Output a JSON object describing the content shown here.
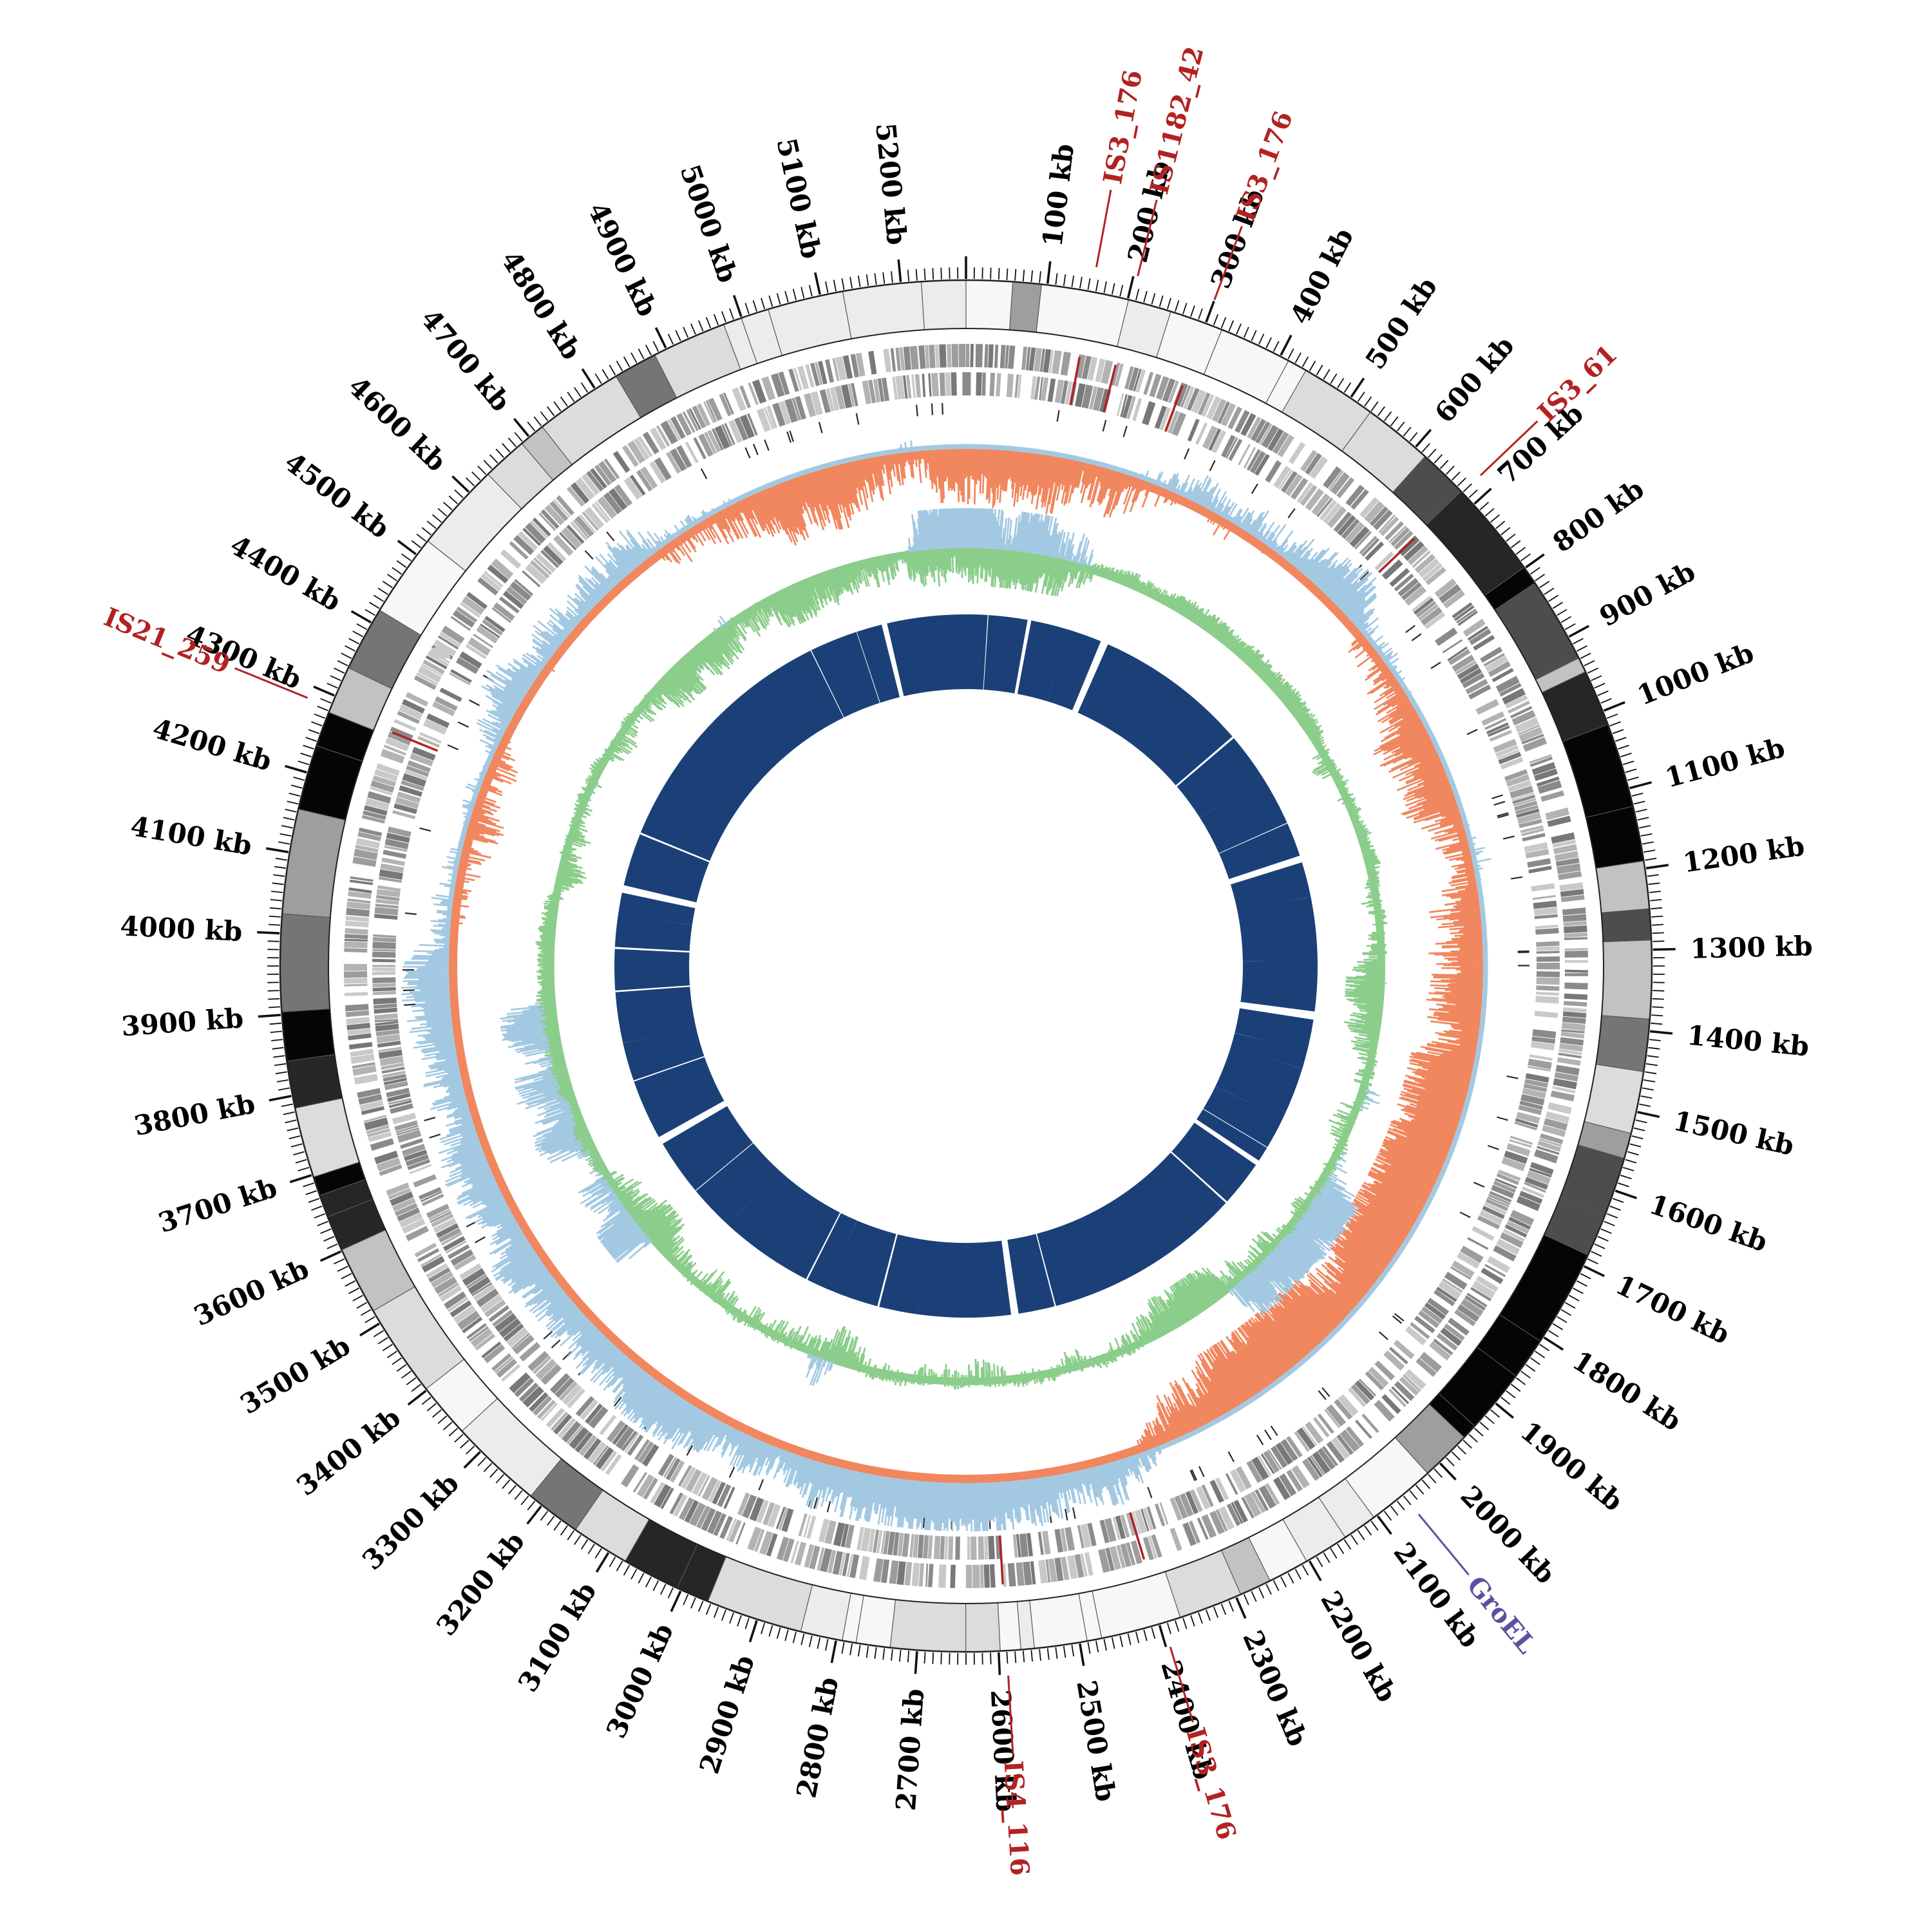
{
  "chart_data": {
    "type": "circular-genome",
    "genome_length_kb": 5280,
    "major_tick_kb": 100,
    "minor_tick_kb": 10,
    "tick_unit": "kb",
    "tick_color": "#111111",
    "tick_label_color": "#000000",
    "tick_labels": [
      "100 kb",
      "200 kb",
      "300 kb",
      "400 kb",
      "500 kb",
      "600 kb",
      "700 kb",
      "800 kb",
      "900 kb",
      "1000 kb",
      "1100 kb",
      "1200 kb",
      "1300 kb",
      "1400 kb",
      "1500 kb",
      "1600 kb",
      "1700 kb",
      "1800 kb",
      "1900 kb",
      "2000 kb",
      "2100 kb",
      "2200 kb",
      "2300 kb",
      "2400 kb",
      "2500 kb",
      "2600 kb",
      "2700 kb",
      "2800 kb",
      "2900 kb",
      "3000 kb",
      "3100 kb",
      "3200 kb",
      "3300 kb",
      "3400 kb",
      "3500 kb",
      "3600 kb",
      "3700 kb",
      "3800 kb",
      "3900 kb",
      "4000 kb",
      "4100 kb",
      "4200 kb",
      "4300 kb",
      "4400 kb",
      "4500 kb",
      "4600 kb",
      "4700 kb",
      "4800 kb",
      "4900 kb",
      "5000 kb",
      "5100 kb",
      "5200 kb"
    ],
    "annotations": [
      {
        "label": "IS3_176",
        "position_kb": 155,
        "color": "#b22222",
        "marker_inside": true
      },
      {
        "label": "IS1182_42",
        "position_kb": 205,
        "color": "#b22222",
        "marker_inside": true
      },
      {
        "label": "IS3_176",
        "position_kb": 300,
        "color": "#b22222",
        "marker_inside": true
      },
      {
        "label": "IS3_61",
        "position_kb": 680,
        "color": "#b22222",
        "marker_inside": true
      },
      {
        "label": "GroEL",
        "position_kb": 2060,
        "color": "#5a52a0",
        "marker_inside": false
      },
      {
        "label": "IS3_176",
        "position_kb": 2395,
        "color": "#b22222",
        "marker_inside": true
      },
      {
        "label": "IS4_116",
        "position_kb": 2590,
        "color": "#b22222",
        "marker_inside": true
      },
      {
        "label": "IS21_259",
        "position_kb": 4285,
        "color": "#b22222",
        "marker_inside": true
      }
    ],
    "tracks": [
      {
        "name": "contig-shading",
        "type": "blocks",
        "palette": [
          "#f7f7f7",
          "#ececec",
          "#dcdcdc",
          "#c2c2c2",
          "#9e9e9e",
          "#757575",
          "#4d4d4d",
          "#262626",
          "#050505"
        ]
      },
      {
        "name": "gene-tiles",
        "type": "tiles",
        "rows": 2,
        "palette": [
          "#c9c9c9",
          "#b3b3b3",
          "#9d9d9d",
          "#8a8a8a",
          "#787878"
        ]
      },
      {
        "name": "gc-skew",
        "type": "diverging-histogram",
        "positive_color": "#a3c9e2",
        "negative_color": "#f0875f"
      },
      {
        "name": "gc-content",
        "type": "histogram",
        "band_color": "#8bcd8b",
        "spike_color": "#a3c9e2"
      },
      {
        "name": "core-genome",
        "type": "ring",
        "color": "#1b4078"
      }
    ],
    "render_seed": 20240613,
    "background": "#ffffff"
  }
}
